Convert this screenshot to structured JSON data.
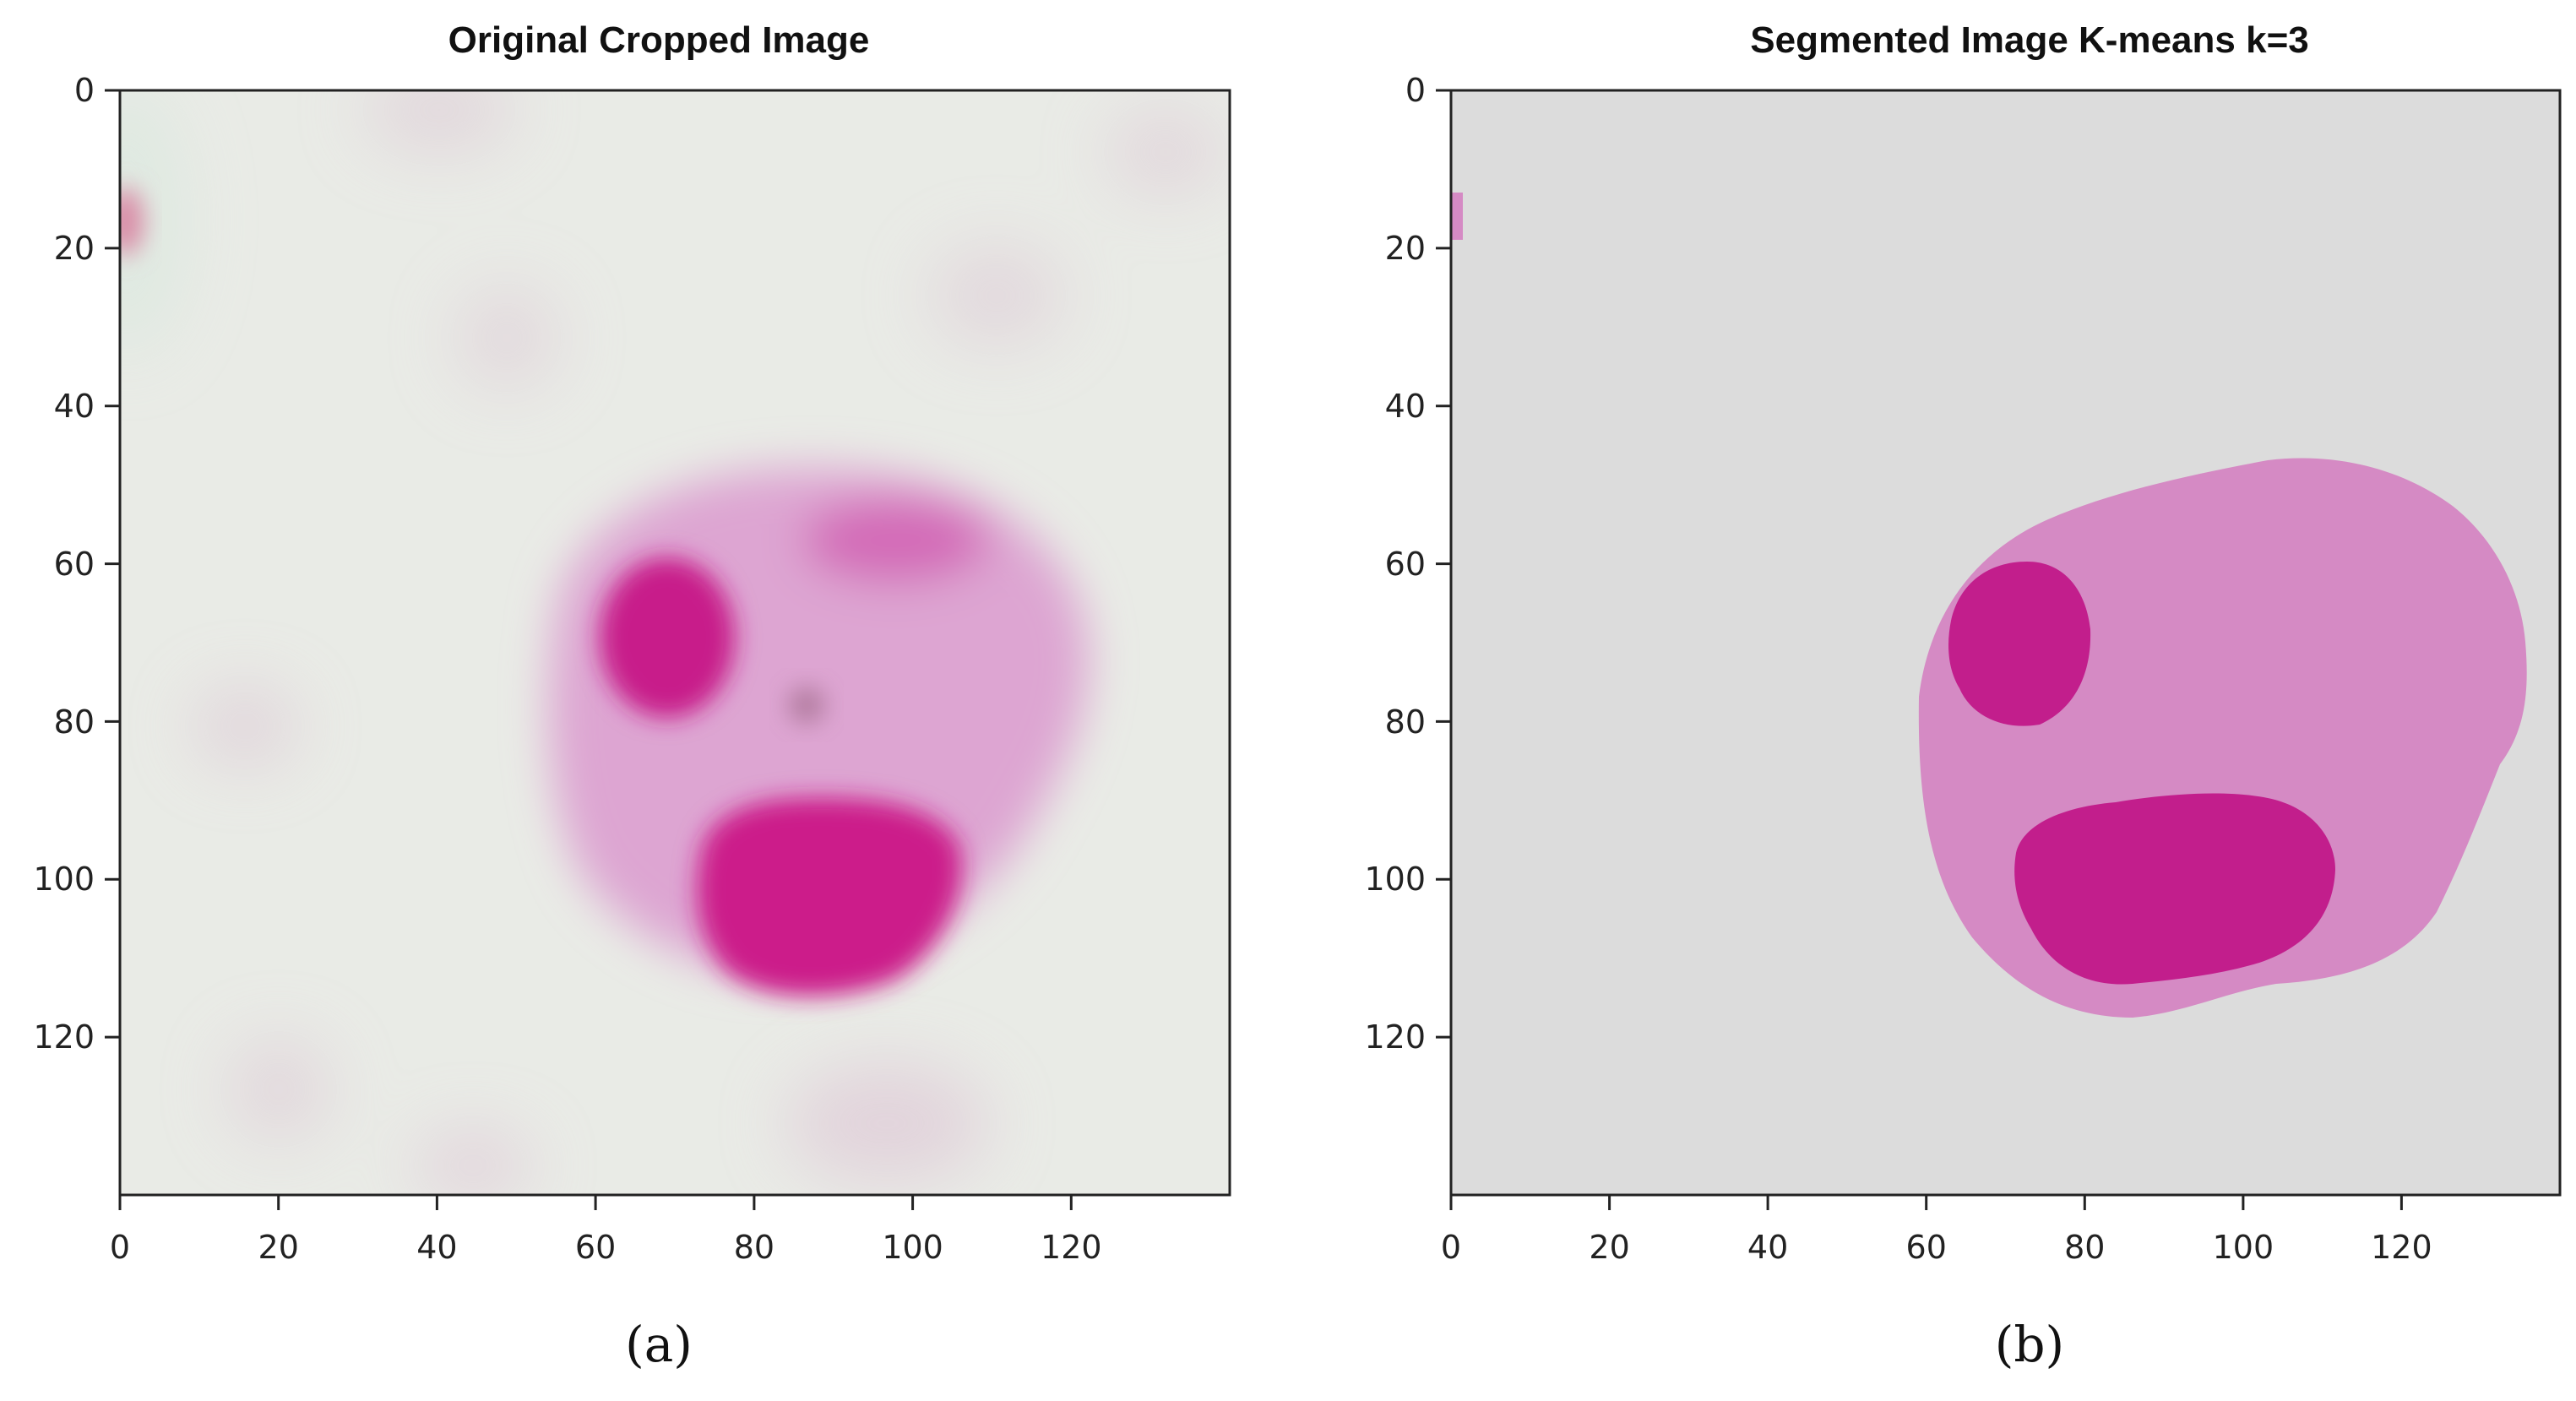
{
  "chart_data": [
    {
      "type": "image",
      "title": "Original Cropped Image",
      "caption": "(a)",
      "xlim": [
        0,
        140
      ],
      "ylim": [
        0,
        140
      ],
      "y_inverted": true,
      "xticks": [
        0,
        20,
        40,
        60,
        80,
        100,
        120
      ],
      "yticks": [
        0,
        20,
        40,
        60,
        80,
        100,
        120
      ],
      "colors": {
        "background": "#e9ebe6",
        "cytoplasm": "#d69ccb",
        "nucleus": "#cc1e8a"
      }
    },
    {
      "type": "image",
      "title": "Segmented Image K-means k=3",
      "caption": "(b)",
      "xlim": [
        0,
        140
      ],
      "ylim": [
        0,
        140
      ],
      "y_inverted": true,
      "xticks": [
        0,
        20,
        40,
        60,
        80,
        100,
        120
      ],
      "yticks": [
        0,
        20,
        40,
        60,
        80,
        100,
        120
      ],
      "colors": {
        "background": "#dcdcdc",
        "cytoplasm": "#d58ac4",
        "nucleus": "#c21e8c"
      }
    }
  ]
}
